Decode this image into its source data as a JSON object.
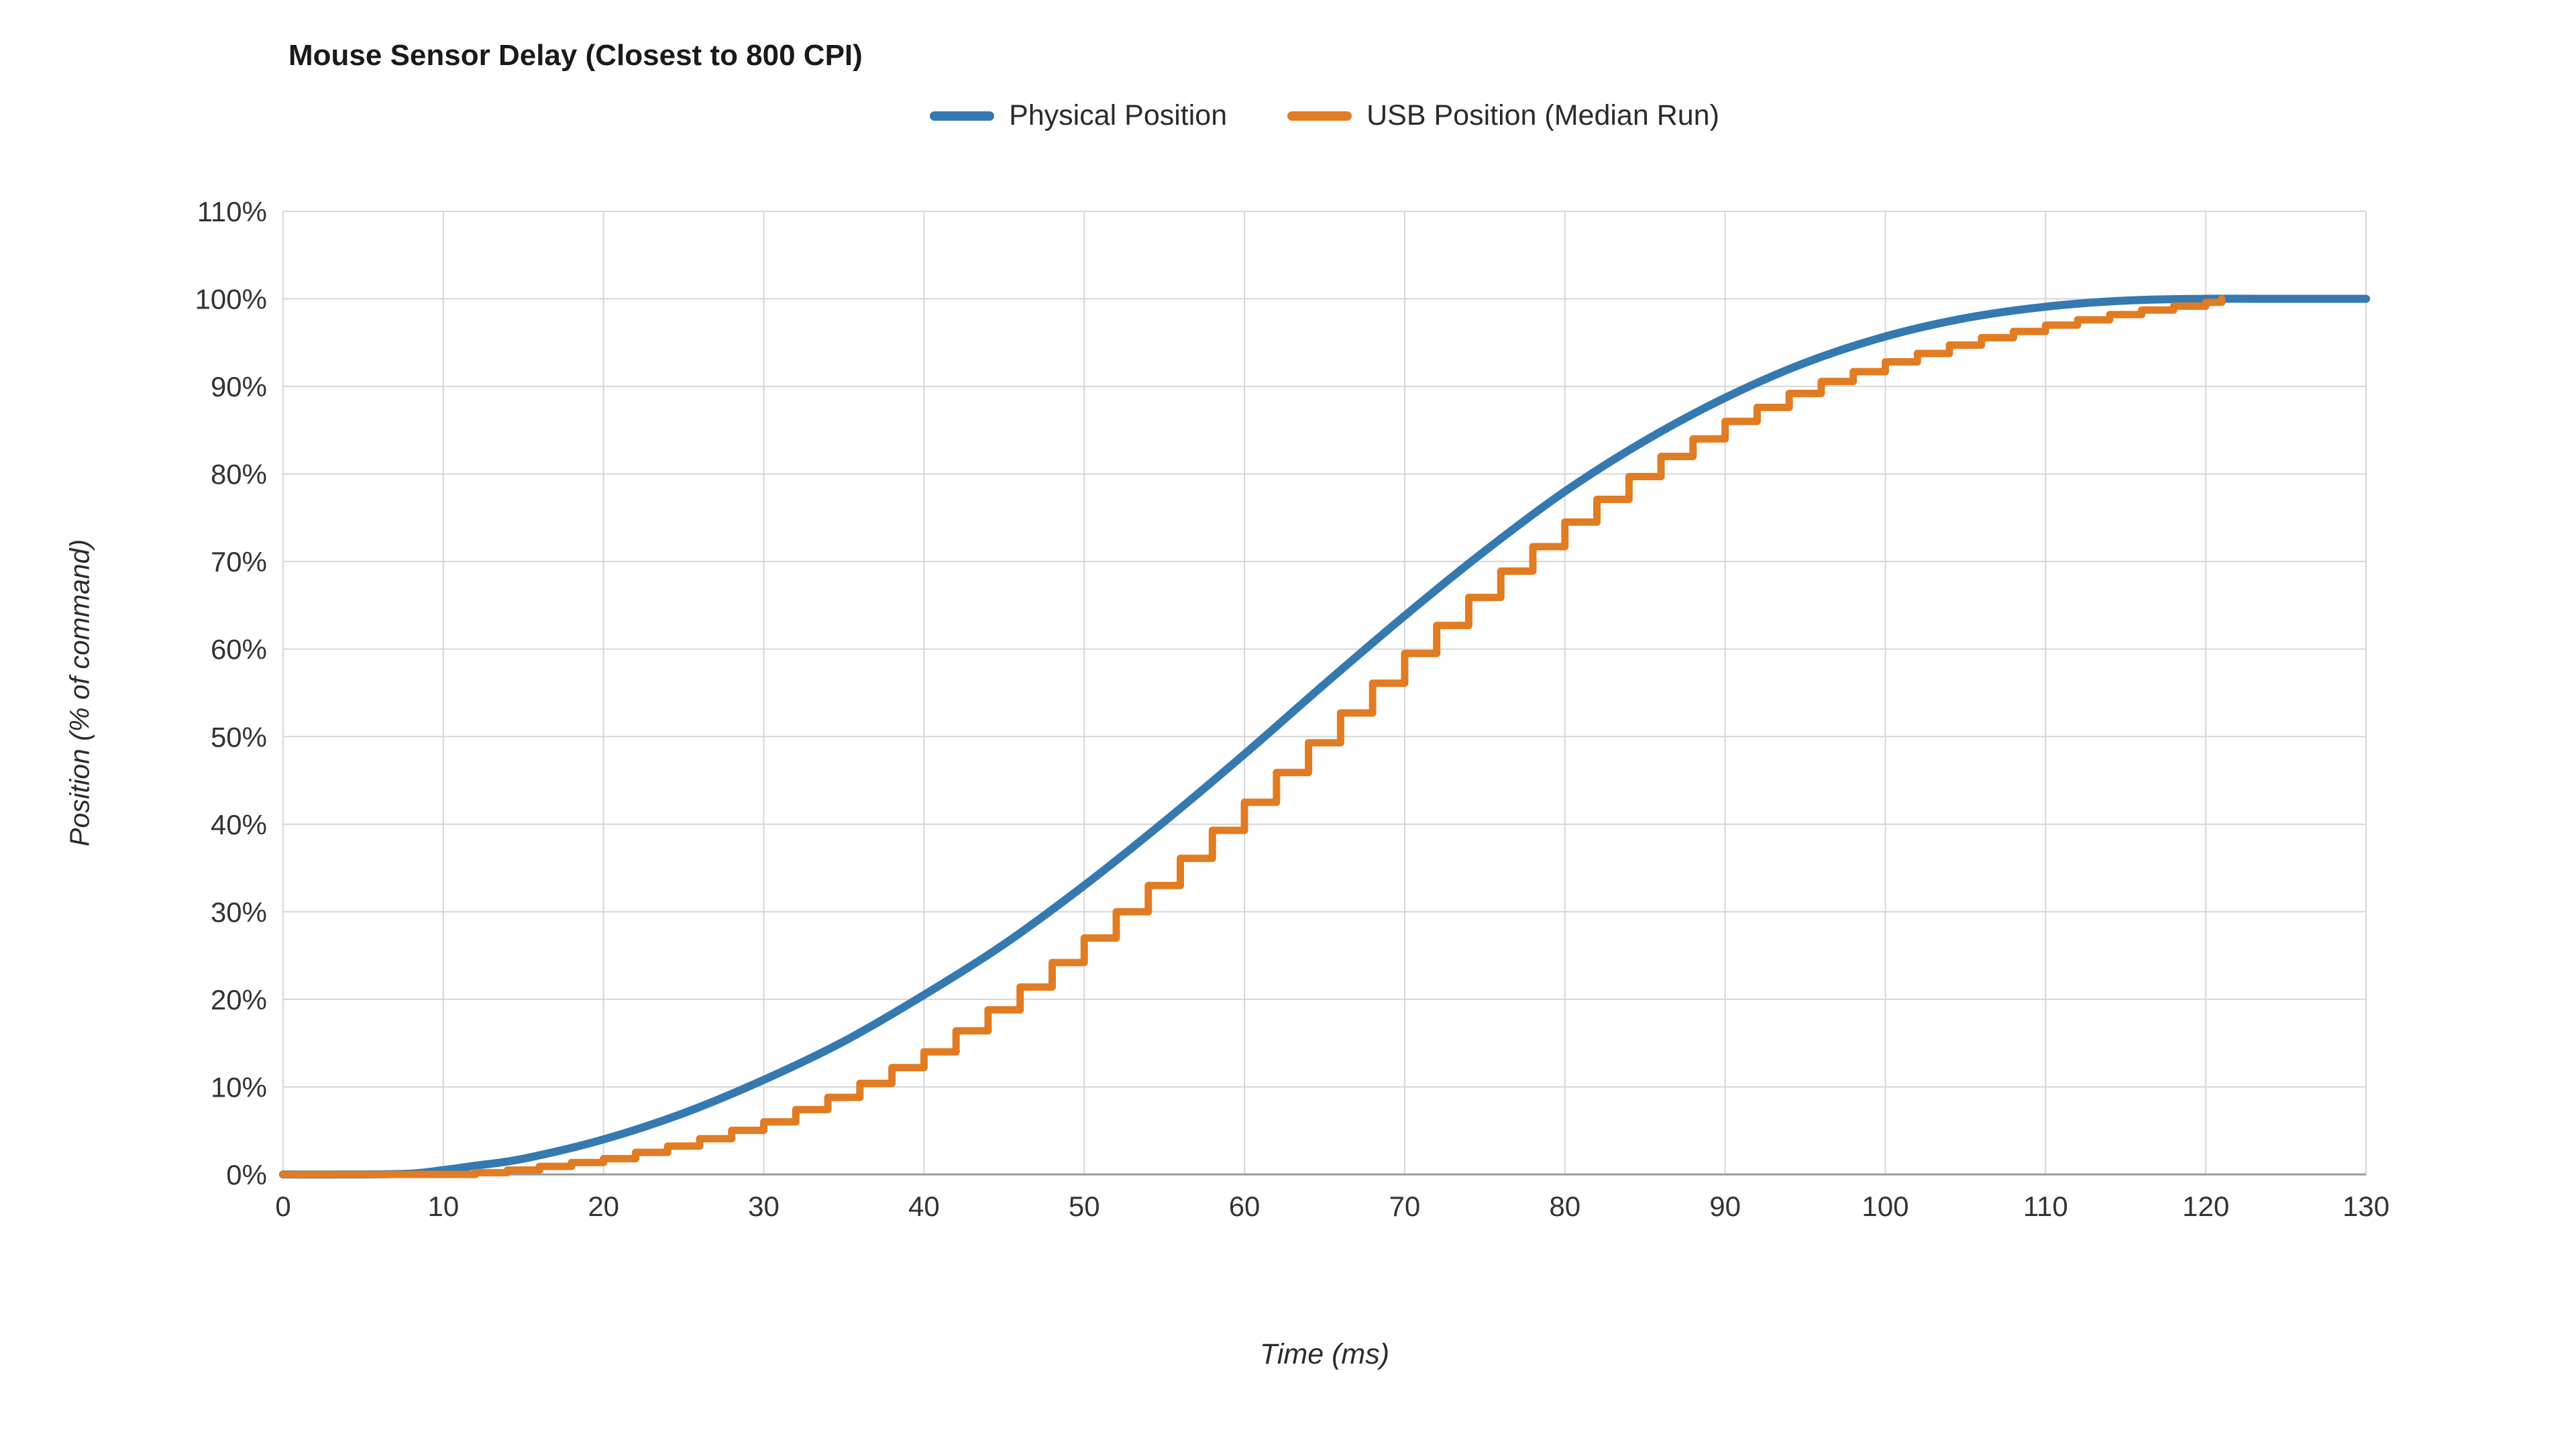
{
  "chart_data": {
    "type": "line",
    "title": "Mouse Sensor Delay (Closest to 800 CPI)",
    "xlabel": "Time (ms)",
    "ylabel": "Position (% of command)",
    "xlim": [
      0,
      130
    ],
    "ylim": [
      0,
      110
    ],
    "x_ticks": [
      0,
      10,
      20,
      30,
      40,
      50,
      60,
      70,
      80,
      90,
      100,
      110,
      120,
      130
    ],
    "y_ticks": [
      0,
      10,
      20,
      30,
      40,
      50,
      60,
      70,
      80,
      90,
      100,
      110
    ],
    "y_tick_suffix": "%",
    "grid": true,
    "grid_color": "#d6d6d6",
    "axis_color": "#9a9a9a",
    "tick_label_color": "#333333",
    "legend_position": "top",
    "series": [
      {
        "name": "Physical Position",
        "color": "#3579B1",
        "style": "smooth",
        "points": [
          [
            0,
            0
          ],
          [
            5,
            0
          ],
          [
            8,
            0.1
          ],
          [
            10,
            0.5
          ],
          [
            12,
            1
          ],
          [
            15,
            1.8
          ],
          [
            20,
            4
          ],
          [
            25,
            7
          ],
          [
            30,
            10.8
          ],
          [
            35,
            15.2
          ],
          [
            40,
            20.5
          ],
          [
            45,
            26.3
          ],
          [
            50,
            33
          ],
          [
            55,
            40.3
          ],
          [
            60,
            48
          ],
          [
            65,
            56
          ],
          [
            70,
            63.8
          ],
          [
            75,
            71.2
          ],
          [
            80,
            78
          ],
          [
            85,
            83.8
          ],
          [
            90,
            88.7
          ],
          [
            95,
            92.7
          ],
          [
            100,
            95.7
          ],
          [
            105,
            97.8
          ],
          [
            110,
            99.1
          ],
          [
            115,
            99.8
          ],
          [
            120,
            100
          ],
          [
            125,
            100
          ],
          [
            130,
            100
          ]
        ]
      },
      {
        "name": "USB Position (Median Run)",
        "color": "#E17C23",
        "style": "steps",
        "step_ms": 2,
        "points": [
          [
            0,
            0
          ],
          [
            10,
            0
          ],
          [
            13,
            0.3
          ],
          [
            15,
            0.7
          ],
          [
            20,
            1.8
          ],
          [
            25,
            3.6
          ],
          [
            30,
            6
          ],
          [
            35,
            9.5
          ],
          [
            40,
            14
          ],
          [
            45,
            20
          ],
          [
            50,
            27
          ],
          [
            55,
            34.5
          ],
          [
            60,
            42.5
          ],
          [
            65,
            51
          ],
          [
            70,
            59.5
          ],
          [
            75,
            67.5
          ],
          [
            80,
            74.5
          ],
          [
            85,
            81
          ],
          [
            90,
            86
          ],
          [
            95,
            90
          ],
          [
            100,
            92.8
          ],
          [
            105,
            95.2
          ],
          [
            110,
            97
          ],
          [
            115,
            98.5
          ],
          [
            120,
            99.6
          ],
          [
            121,
            100
          ]
        ]
      }
    ]
  }
}
